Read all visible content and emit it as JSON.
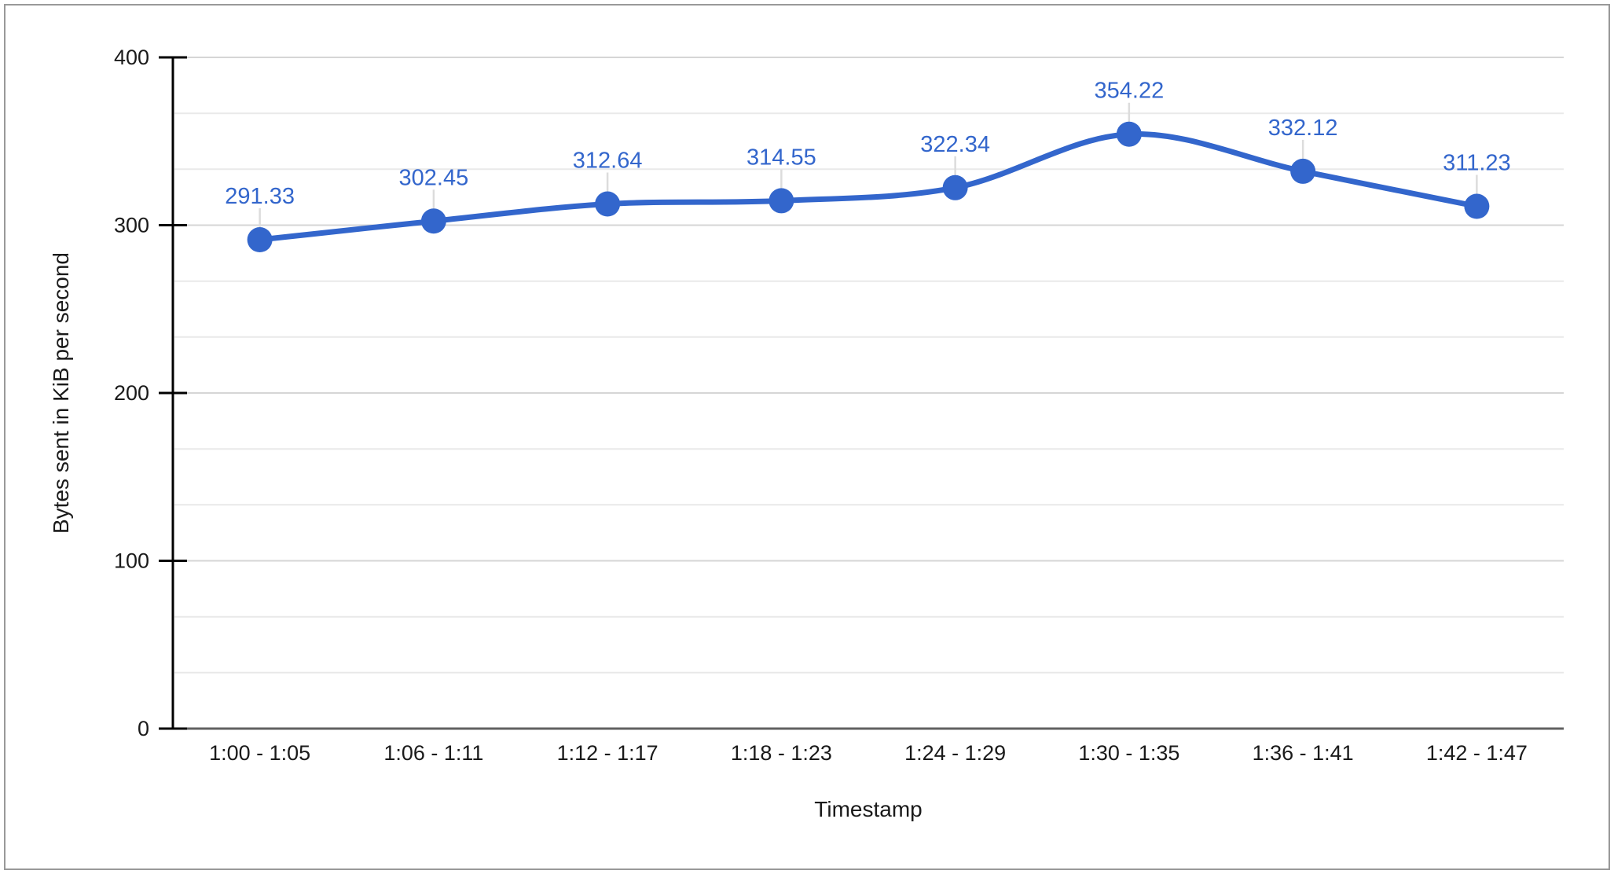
{
  "chart_data": {
    "type": "line",
    "title": "",
    "xlabel": "Timestamp",
    "ylabel": "Bytes sent in KiB per second",
    "categories": [
      "1:00 - 1:05",
      "1:06 - 1:11",
      "1:12 - 1:17",
      "1:18 - 1:23",
      "1:24 - 1:29",
      "1:30 - 1:35",
      "1:36 - 1:41",
      "1:42 - 1:47"
    ],
    "series": [
      {
        "name": "Bytes sent in KiB per second",
        "values": [
          291.33,
          302.45,
          312.64,
          314.55,
          322.34,
          354.22,
          332.12,
          311.23
        ]
      }
    ],
    "data_labels_visible": true,
    "data_label_decimals": 2,
    "ylim": [
      0,
      400
    ],
    "yticks": [
      0,
      100,
      200,
      300,
      400
    ],
    "minor_divisions_per_major": 3,
    "grid": true,
    "smooth_line": true,
    "legend_position": "none",
    "colors": {
      "series": "#3366CC",
      "data_label": "#3366CC",
      "gridline_major": "#d6d6d6",
      "gridline_minor": "#e9e9e9",
      "baseline": "#616161",
      "axis": "#000000",
      "tick_text": "#1a1a1a",
      "callout": "#dcdcdc",
      "border": "#999999",
      "background": "#ffffff"
    }
  }
}
